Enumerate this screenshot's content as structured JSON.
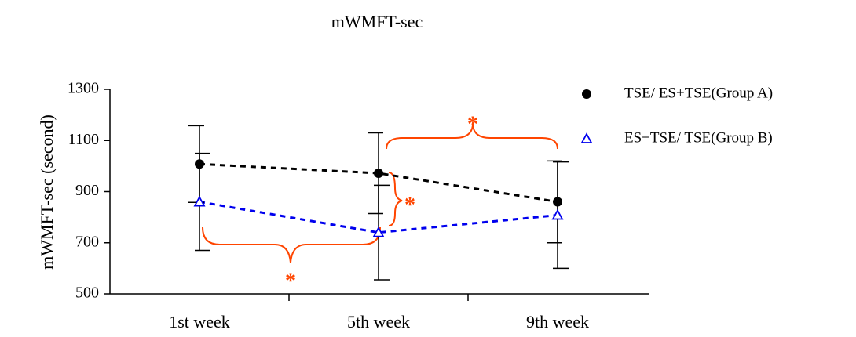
{
  "chart_data": {
    "type": "line",
    "title": "mWMFT-sec",
    "y_label": "mWMFT-sec (second)",
    "categories": [
      "1st week",
      "5th week",
      "9th week"
    ],
    "series": [
      {
        "name": "TSE/ ES+TSE(Group A)",
        "color": "#000000",
        "marker": "circle",
        "values": [
          1008,
          972,
          860
        ],
        "errors": [
          150,
          158,
          160
        ]
      },
      {
        "name": "ES+TSE/ TSE(Group B)",
        "color": "#0000ee",
        "marker": "triangle",
        "values": [
          860,
          740,
          808
        ],
        "errors": [
          190,
          185,
          208
        ]
      }
    ],
    "ylim": [
      500,
      1300
    ],
    "yticks": [
      500,
      700,
      900,
      1100,
      1300
    ],
    "annotations": [
      "*",
      "*",
      "*"
    ],
    "annotation_color": "#ff4500",
    "legend": "top-right"
  }
}
